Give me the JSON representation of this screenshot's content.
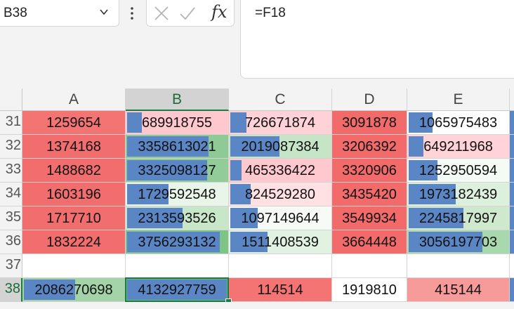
{
  "name_box": {
    "value": "B38"
  },
  "formula_bar": {
    "formula": "=F18"
  },
  "columns": [
    "A",
    "B",
    "C",
    "D",
    "E"
  ],
  "selected_column": "B",
  "rows": [
    {
      "label": "31",
      "cells": [
        {
          "value": "1259654",
          "bg": "#f47373",
          "bar": 0
        },
        {
          "value": "689918755",
          "bg": "#ffc7ce",
          "bar": 0.15
        },
        {
          "value": "726671874",
          "bg": "#ffd2d7",
          "bar": 0.16
        },
        {
          "value": "3091878",
          "bg": "#f26a6a",
          "bar": 0
        },
        {
          "value": "1065975483",
          "bg": "#ffffff",
          "bar": 0.24
        }
      ]
    },
    {
      "label": "32",
      "cells": [
        {
          "value": "1374168",
          "bg": "#f26d6d",
          "bar": 0
        },
        {
          "value": "3358613021",
          "bg": "#8fca96",
          "bar": 0.81
        },
        {
          "value": "2019087384",
          "bg": "#c6e4c6",
          "bar": 0.49
        },
        {
          "value": "3206392",
          "bg": "#f26a6a",
          "bar": 0
        },
        {
          "value": "649211968",
          "bg": "#ffd3d8",
          "bar": 0.15
        }
      ]
    },
    {
      "label": "33",
      "cells": [
        {
          "value": "1488682",
          "bg": "#f26d6d",
          "bar": 0
        },
        {
          "value": "3325098127",
          "bg": "#92cc98",
          "bar": 0.8
        },
        {
          "value": "465336422",
          "bg": "#ffc7ce",
          "bar": 0.11
        },
        {
          "value": "3320906",
          "bg": "#f26a6a",
          "bar": 0
        },
        {
          "value": "1252950594",
          "bg": "#f4faf4",
          "bar": 0.29
        }
      ]
    },
    {
      "label": "34",
      "cells": [
        {
          "value": "1603196",
          "bg": "#f26d6d",
          "bar": 0
        },
        {
          "value": "1729592548",
          "bg": "#e9f5e9",
          "bar": 0.41
        },
        {
          "value": "824529280",
          "bg": "#ffe1e4",
          "bar": 0.2
        },
        {
          "value": "3435420",
          "bg": "#f26a6a",
          "bar": 0
        },
        {
          "value": "1973182439",
          "bg": "#ddf0dd",
          "bar": 0.47
        }
      ]
    },
    {
      "label": "35",
      "cells": [
        {
          "value": "1717710",
          "bg": "#f26d6d",
          "bar": 0
        },
        {
          "value": "2313593526",
          "bg": "#c8e6c8",
          "bar": 0.55
        },
        {
          "value": "1097149644",
          "bg": "#f6fbf6",
          "bar": 0.27
        },
        {
          "value": "3549934",
          "bg": "#f26a6a",
          "bar": 0
        },
        {
          "value": "2245817997",
          "bg": "#cfe9cf",
          "bar": 0.55
        }
      ]
    },
    {
      "label": "36",
      "cells": [
        {
          "value": "1832224",
          "bg": "#f26d6d",
          "bar": 0
        },
        {
          "value": "3756293132",
          "bg": "#7dc587",
          "bar": 0.92
        },
        {
          "value": "1511408539",
          "bg": "#e2f2e2",
          "bar": 0.37
        },
        {
          "value": "3664448",
          "bg": "#f26a6a",
          "bar": 0
        },
        {
          "value": "3056197703",
          "bg": "#a8d8ae",
          "bar": 0.74
        }
      ]
    },
    {
      "label": "37",
      "cells": [
        {
          "value": "",
          "bg": "#ffffff",
          "bar": 0
        },
        {
          "value": "",
          "bg": "#ffffff",
          "bar": 0
        },
        {
          "value": "",
          "bg": "#ffffff",
          "bar": 0
        },
        {
          "value": "",
          "bg": "#ffffff",
          "bar": 0
        },
        {
          "value": "",
          "bg": "#ffffff",
          "bar": 0
        }
      ]
    },
    {
      "label": "38",
      "cells": [
        {
          "value": "2086270698",
          "bg": "#a3d3a7",
          "bar": 0.51
        },
        {
          "value": "4132927759",
          "bg": "#6abb75",
          "bar": 0.99
        },
        {
          "value": "114514",
          "bg": "#f47373",
          "bar": 0
        },
        {
          "value": "1919810",
          "bg": "#ffffff",
          "bar": 0
        },
        {
          "value": "415144",
          "bg": "#f79a9a",
          "bar": 0
        }
      ]
    }
  ],
  "selected_row": "38",
  "colors": {
    "accent": "#1e7a45",
    "databar": "#5b86c5"
  }
}
